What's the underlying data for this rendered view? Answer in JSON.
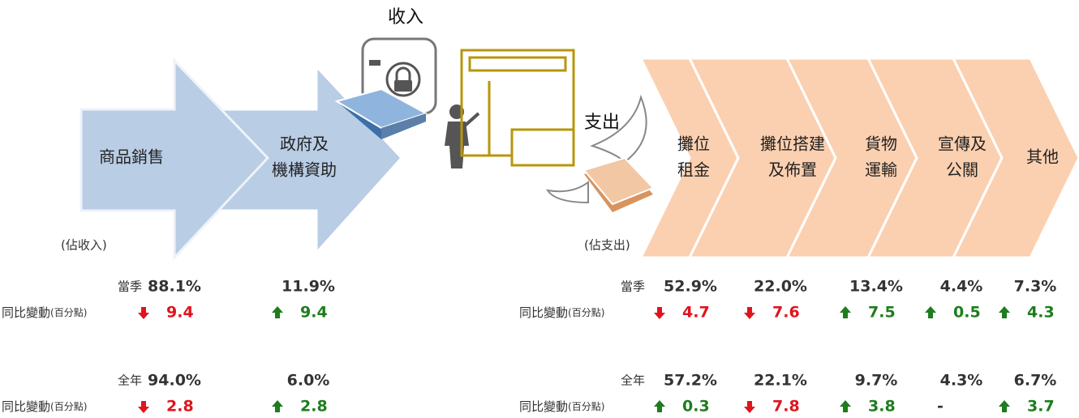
{
  "period_labels": {
    "quarter": "當季",
    "year": "全年"
  },
  "change_label": "同比變動",
  "change_unit": "(百分點)",
  "income": {
    "title": "收入",
    "note": "(佔收入)",
    "items": [
      {
        "lines": [
          "商品銷售"
        ],
        "quarter": "88.1%",
        "quarter_change": {
          "text": "9.4",
          "direction": "down"
        },
        "year": "94.0%",
        "year_change": {
          "text": "2.8",
          "direction": "down"
        }
      },
      {
        "lines": [
          "政府及",
          "機構資助"
        ],
        "quarter": "11.9%",
        "quarter_change": {
          "text": "9.4",
          "direction": "up"
        },
        "year": "6.0%",
        "year_change": {
          "text": "2.8",
          "direction": "up"
        }
      }
    ]
  },
  "expense": {
    "title": "支出",
    "note": "(佔支出)",
    "items": [
      {
        "lines": [
          "攤位",
          "租金"
        ],
        "quarter": "52.9%",
        "quarter_change": {
          "text": "4.7",
          "direction": "down"
        },
        "year": "57.2%",
        "year_change": {
          "text": "0.3",
          "direction": "up"
        }
      },
      {
        "lines": [
          "攤位搭建",
          "及佈置"
        ],
        "quarter": "22.0%",
        "quarter_change": {
          "text": "7.6",
          "direction": "down"
        },
        "year": "22.1%",
        "year_change": {
          "text": "7.8",
          "direction": "down"
        }
      },
      {
        "lines": [
          "貨物",
          "運輸"
        ],
        "quarter": "13.4%",
        "quarter_change": {
          "text": "7.5",
          "direction": "up"
        },
        "year": "9.7%",
        "year_change": {
          "text": "3.8",
          "direction": "up"
        }
      },
      {
        "lines": [
          "宣傳及",
          "公關"
        ],
        "quarter": "4.4%",
        "quarter_change": {
          "text": "0.5",
          "direction": "up"
        },
        "year": "4.3%",
        "year_change": {
          "text": "-",
          "direction": null
        }
      },
      {
        "lines": [
          "其他"
        ],
        "quarter": "7.3%",
        "quarter_change": {
          "text": "4.3",
          "direction": "up"
        },
        "year": "6.7%",
        "year_change": {
          "text": "3.7",
          "direction": "up"
        }
      }
    ]
  }
}
